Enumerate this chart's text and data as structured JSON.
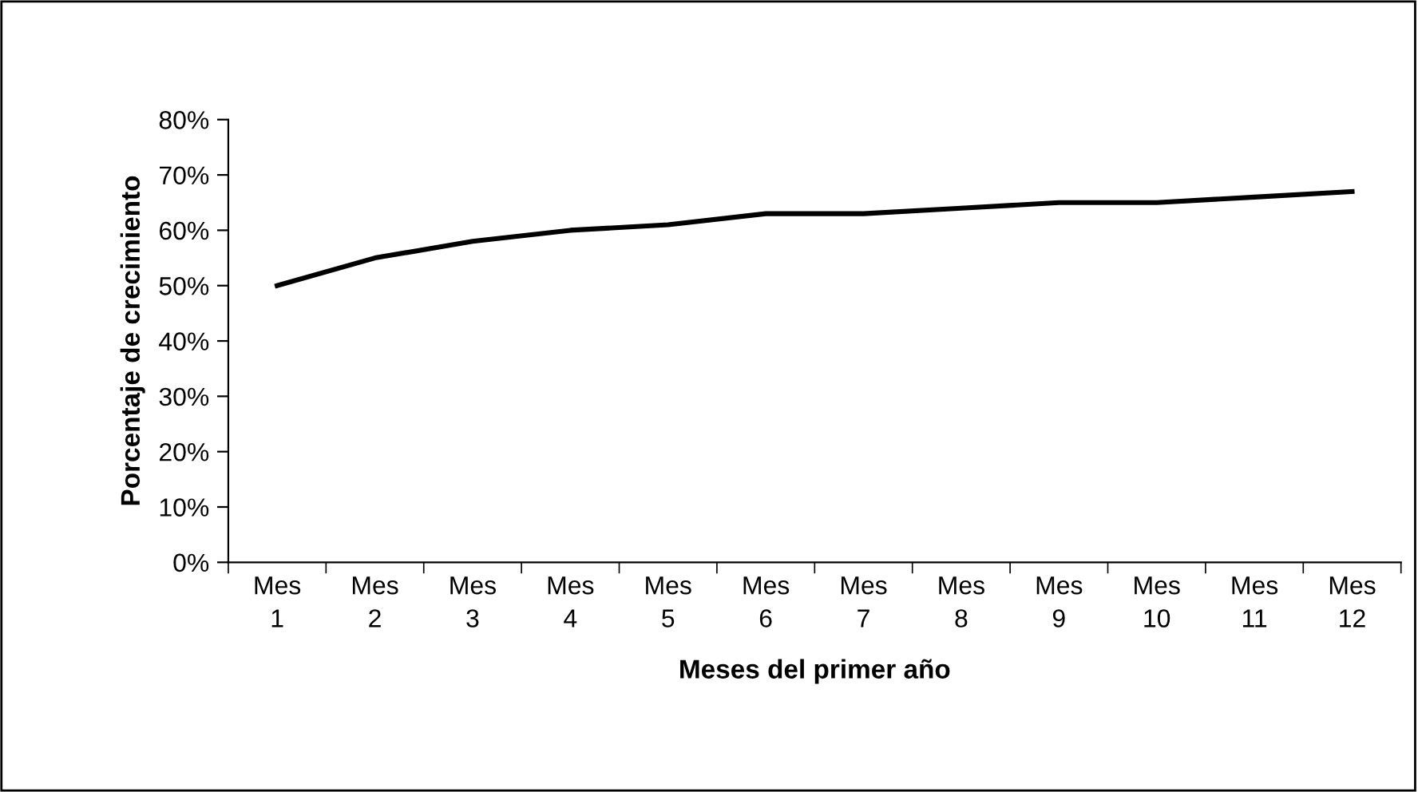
{
  "chart_data": {
    "type": "line",
    "xlabel": "Meses del primer año",
    "ylabel": "Porcentaje de crecimiento",
    "categories": [
      "Mes 1",
      "Mes 2",
      "Mes 3",
      "Mes 4",
      "Mes 5",
      "Mes 6",
      "Mes 7",
      "Mes 8",
      "Mes 9",
      "Mes 10",
      "Mes 11",
      "Mes 12"
    ],
    "series": [
      {
        "color": "#000000",
        "values": [
          50,
          55,
          58,
          60,
          61,
          63,
          63,
          64,
          65,
          65,
          66,
          67
        ]
      }
    ],
    "ylim": [
      0,
      80
    ],
    "yticks": [
      {
        "value": 0,
        "label": "0%"
      },
      {
        "value": 10,
        "label": "10%"
      },
      {
        "value": 20,
        "label": "20%"
      },
      {
        "value": 30,
        "label": "30%"
      },
      {
        "value": 40,
        "label": "40%"
      },
      {
        "value": 50,
        "label": "50%"
      },
      {
        "value": 60,
        "label": "60%"
      },
      {
        "value": 70,
        "label": "70%"
      },
      {
        "value": 80,
        "label": "80%"
      }
    ],
    "grid": false,
    "marker": "none",
    "line_style": "solid"
  }
}
